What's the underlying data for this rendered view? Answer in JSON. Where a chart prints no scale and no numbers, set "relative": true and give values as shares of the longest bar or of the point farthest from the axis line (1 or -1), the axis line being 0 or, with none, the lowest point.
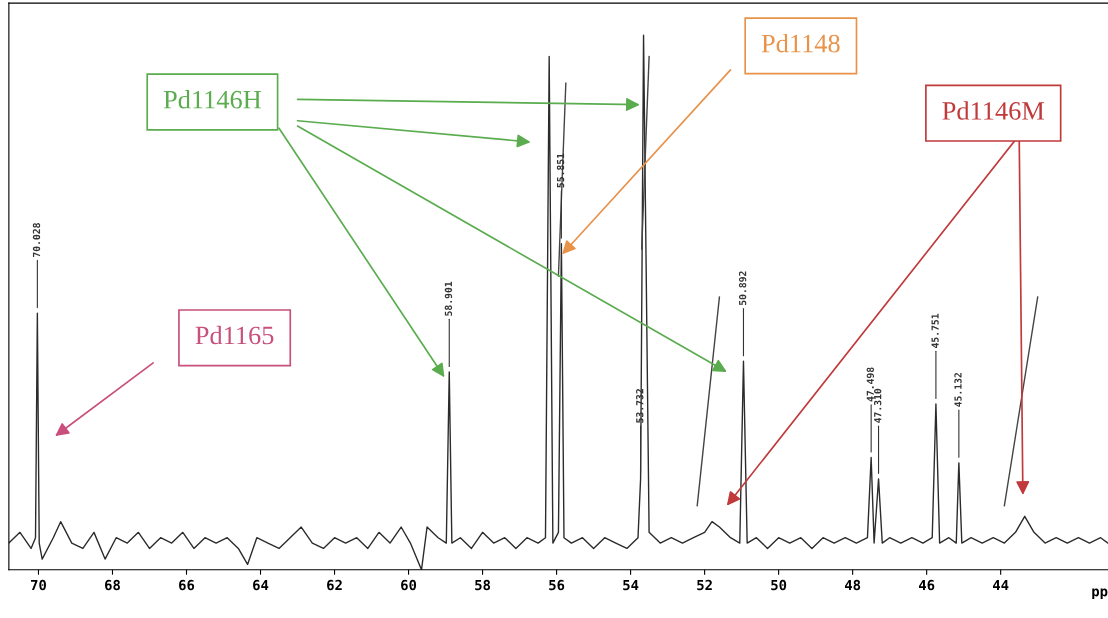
{
  "chart_data": {
    "type": "line",
    "relative": true,
    "xlabel": "pp",
    "xlim": [
      70.8,
      41.1
    ],
    "xticks": [
      70,
      68,
      66,
      64,
      62,
      60,
      58,
      56,
      54,
      52,
      50,
      48,
      46,
      44
    ],
    "tick_labels": "x",
    "grid": false,
    "marker": "none",
    "line_style": "solid",
    "series": [
      {
        "color": "#2b2b2b",
        "x": [
          70.8,
          70.5,
          70.2,
          70.08,
          70.03,
          69.98,
          69.9,
          69.6,
          69.4,
          69.1,
          68.8,
          68.5,
          68.2,
          67.9,
          67.6,
          67.3,
          67.0,
          66.7,
          66.4,
          66.1,
          65.8,
          65.5,
          65.2,
          64.9,
          64.6,
          64.35,
          64.1,
          63.8,
          63.5,
          63.2,
          62.9,
          62.6,
          62.3,
          62.0,
          61.7,
          61.4,
          61.1,
          60.8,
          60.5,
          60.2,
          59.95,
          59.65,
          59.5,
          59.2,
          58.98,
          58.9,
          58.83,
          58.6,
          58.3,
          58.0,
          57.7,
          57.4,
          57.1,
          56.8,
          56.5,
          56.3,
          56.2,
          56.1,
          55.95,
          55.87,
          55.8,
          55.6,
          55.3,
          55.0,
          54.7,
          54.4,
          54.1,
          53.8,
          53.73,
          53.65,
          53.5,
          53.2,
          52.9,
          52.6,
          52.3,
          52.0,
          51.8,
          51.6,
          51.3,
          51.05,
          50.95,
          50.85,
          50.6,
          50.3,
          50.0,
          49.7,
          49.4,
          49.1,
          48.8,
          48.5,
          48.2,
          47.9,
          47.6,
          47.5,
          47.42,
          47.3,
          47.2,
          47.0,
          46.7,
          46.4,
          46.1,
          45.85,
          45.75,
          45.65,
          45.4,
          45.2,
          45.13,
          45.05,
          44.8,
          44.5,
          44.2,
          43.9,
          43.6,
          43.35,
          43.1,
          42.8,
          42.5,
          42.2,
          41.9,
          41.6,
          41.3,
          41.1
        ],
        "values": [
          0.05,
          0.07,
          0.04,
          0.06,
          0.48,
          0.05,
          0.02,
          0.06,
          0.09,
          0.05,
          0.04,
          0.07,
          0.02,
          0.06,
          0.05,
          0.07,
          0.04,
          0.06,
          0.05,
          0.07,
          0.04,
          0.06,
          0.05,
          0.06,
          0.04,
          0.01,
          0.06,
          0.05,
          0.04,
          0.06,
          0.08,
          0.05,
          0.04,
          0.06,
          0.05,
          0.06,
          0.04,
          0.07,
          0.05,
          0.08,
          0.05,
          0.0,
          0.08,
          0.06,
          0.05,
          0.37,
          0.05,
          0.06,
          0.04,
          0.07,
          0.05,
          0.06,
          0.04,
          0.06,
          0.05,
          0.06,
          0.96,
          0.05,
          0.07,
          0.61,
          0.06,
          0.05,
          0.06,
          0.04,
          0.06,
          0.05,
          0.04,
          0.06,
          0.17,
          1.0,
          0.07,
          0.05,
          0.06,
          0.05,
          0.06,
          0.07,
          0.09,
          0.08,
          0.06,
          0.05,
          0.39,
          0.05,
          0.06,
          0.04,
          0.06,
          0.05,
          0.06,
          0.04,
          0.06,
          0.05,
          0.06,
          0.05,
          0.06,
          0.21,
          0.05,
          0.17,
          0.05,
          0.06,
          0.05,
          0.06,
          0.05,
          0.06,
          0.31,
          0.05,
          0.06,
          0.05,
          0.2,
          0.05,
          0.06,
          0.05,
          0.06,
          0.05,
          0.07,
          0.1,
          0.07,
          0.05,
          0.06,
          0.05,
          0.06,
          0.05,
          0.06,
          0.05
        ]
      },
      {
        "color": "#444444",
        "x": [
          55.95,
          55.75
        ],
        "values": [
          0.55,
          0.91
        ]
      },
      {
        "color": "#444444",
        "x": [
          53.7,
          53.5
        ],
        "values": [
          0.6,
          0.96
        ]
      },
      {
        "color": "#444444",
        "x": [
          52.2,
          51.6
        ],
        "values": [
          0.12,
          0.51
        ]
      },
      {
        "color": "#444444",
        "x": [
          43.9,
          43.0
        ],
        "values": [
          0.12,
          0.51
        ]
      }
    ],
    "annotations": [
      {
        "text": "70.028",
        "x": 70.03,
        "y": 0.48
      },
      {
        "text": "58.901",
        "x": 58.9,
        "y": 0.37
      },
      {
        "text": "55.851",
        "x": 55.87,
        "y": 0.61
      },
      {
        "text": "53.732",
        "x": 53.73,
        "y": 0.17
      },
      {
        "text": "50.892",
        "x": 50.95,
        "y": 0.39
      },
      {
        "text": "47.498",
        "x": 47.5,
        "y": 0.21
      },
      {
        "text": "47.310",
        "x": 47.3,
        "y": 0.17
      },
      {
        "text": "45.751",
        "x": 45.75,
        "y": 0.31
      },
      {
        "text": "45.132",
        "x": 45.13,
        "y": 0.2
      },
      "Pd1146H",
      "Pd1148",
      "Pd1146M",
      "Pd1165"
    ]
  }
}
